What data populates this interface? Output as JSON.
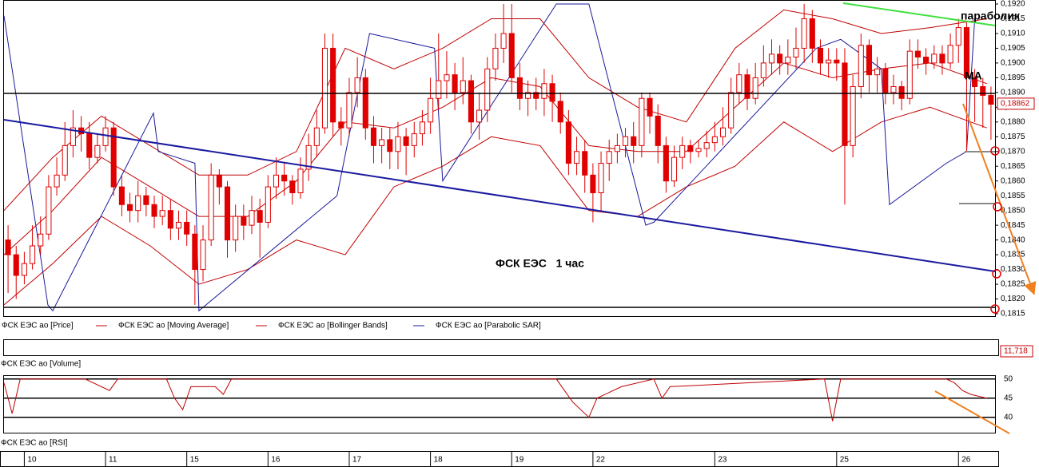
{
  "chart_data": [
    {
      "type": "candlestick",
      "annotations": [
        "параболик",
        "МА",
        "ФСК ЕЭС   1 час"
      ],
      "last_price": {
        "value": 0.18862,
        "label": "0,18862"
      },
      "xlim": [
        0,
        122
      ],
      "xticks": [
        {
          "value": 2.5,
          "label": "10"
        },
        {
          "value": 12.5,
          "label": "11"
        },
        {
          "value": 22.5,
          "label": "15"
        },
        {
          "value": 32.5,
          "label": "16"
        },
        {
          "value": 42.5,
          "label": "17"
        },
        {
          "value": 52.5,
          "label": "18"
        },
        {
          "value": 62.5,
          "label": "19"
        },
        {
          "value": 72.5,
          "label": "22"
        },
        {
          "value": 87.5,
          "label": "23"
        },
        {
          "value": 102.5,
          "label": "25"
        },
        {
          "value": 117.5,
          "label": "26"
        }
      ],
      "ylim": [
        0.1815,
        0.192
      ],
      "yticks": [
        {
          "value": 0.1815,
          "label": "0,1815"
        },
        {
          "value": 0.182,
          "label": "0,1820"
        },
        {
          "value": 0.1825,
          "label": "0,1825"
        },
        {
          "value": 0.183,
          "label": "0,1830"
        },
        {
          "value": 0.1835,
          "label": "0,1835"
        },
        {
          "value": 0.184,
          "label": "0,1840"
        },
        {
          "value": 0.1845,
          "label": "0,1845"
        },
        {
          "value": 0.185,
          "label": "0,1850"
        },
        {
          "value": 0.1855,
          "label": "0,1855"
        },
        {
          "value": 0.186,
          "label": "0,1860"
        },
        {
          "value": 0.1865,
          "label": "0,1865"
        },
        {
          "value": 0.187,
          "label": "0,1870"
        },
        {
          "value": 0.1875,
          "label": "0,1875"
        },
        {
          "value": 0.188,
          "label": "0,1880"
        },
        {
          "value": 0.1885,
          "label": "0,1885"
        },
        {
          "value": 0.189,
          "label": "0,1890"
        },
        {
          "value": 0.1895,
          "label": "0,1895"
        },
        {
          "value": 0.19,
          "label": "0,1900"
        },
        {
          "value": 0.1905,
          "label": "0,1905"
        },
        {
          "value": 0.191,
          "label": "0,1910"
        },
        {
          "value": 0.1915,
          "label": "0,1915"
        },
        {
          "value": 0.192,
          "label": "0,1920"
        }
      ],
      "price": {
        "name": "ФСК ЕЭС ао [Price]",
        "color": "#e00000",
        "open": [
          0.184,
          0.1835,
          0.1828,
          0.1832,
          0.1838,
          0.1842,
          0.1858,
          0.1862,
          0.1872,
          0.1878,
          0.1876,
          0.1868,
          0.1872,
          0.1878,
          0.1858,
          0.1852,
          0.185,
          0.1855,
          0.1852,
          0.1848,
          0.185,
          0.1844,
          0.1846,
          0.1842,
          0.183,
          0.184,
          0.1862,
          0.1858,
          0.184,
          0.1848,
          0.1845,
          0.185,
          0.1846,
          0.1858,
          0.1862,
          0.186,
          0.1856,
          0.1864,
          0.1872,
          0.1878,
          0.1905,
          0.188,
          0.1878,
          0.189,
          0.1895,
          0.1878,
          0.1872,
          0.1874,
          0.187,
          0.1875,
          0.1872,
          0.1876,
          0.188,
          0.1888,
          0.1894,
          0.1896,
          0.189,
          0.1894,
          0.188,
          0.1884,
          0.1898,
          0.1905,
          0.191,
          0.1895,
          0.1888,
          0.189,
          0.1888,
          0.1893,
          0.1887,
          0.188,
          0.1866,
          0.187,
          0.1862,
          0.1856,
          0.1866,
          0.187,
          0.1872,
          0.1875,
          0.1872,
          0.1888,
          0.1882,
          0.1872,
          0.186,
          0.1868,
          0.1872,
          0.187,
          0.1871,
          0.1873,
          0.1875,
          0.1878,
          0.189,
          0.1896,
          0.1888,
          0.1895,
          0.19,
          0.1903,
          0.19,
          0.1902,
          0.1905,
          0.1915,
          0.1905,
          0.19,
          0.1901,
          0.19,
          0.1872,
          0.1892,
          0.1906,
          0.1896,
          0.1898,
          0.189,
          0.1892,
          0.1888,
          0.1904,
          0.1902,
          0.19,
          0.1903,
          0.19,
          0.1906,
          0.1912,
          0.1895,
          0.1892,
          0.1889
        ],
        "high": [
          0.1845,
          0.1838,
          0.1836,
          0.1845,
          0.1848,
          0.1862,
          0.1868,
          0.188,
          0.1884,
          0.1882,
          0.188,
          0.1876,
          0.1882,
          0.188,
          0.1862,
          0.1856,
          0.186,
          0.1858,
          0.1855,
          0.1855,
          0.1854,
          0.185,
          0.185,
          0.1845,
          0.1845,
          0.1866,
          0.1864,
          0.186,
          0.1852,
          0.1852,
          0.1855,
          0.1854,
          0.1862,
          0.1868,
          0.1866,
          0.1862,
          0.1868,
          0.1876,
          0.1884,
          0.191,
          0.191,
          0.1885,
          0.1895,
          0.1902,
          0.1898,
          0.1882,
          0.1878,
          0.1878,
          0.188,
          0.1878,
          0.188,
          0.1884,
          0.1895,
          0.191,
          0.1904,
          0.19,
          0.1902,
          0.1896,
          0.189,
          0.1902,
          0.191,
          0.192,
          0.192,
          0.19,
          0.1894,
          0.1895,
          0.1898,
          0.1896,
          0.189,
          0.1884,
          0.1875,
          0.1874,
          0.1866,
          0.187,
          0.1874,
          0.1876,
          0.1878,
          0.188,
          0.189,
          0.189,
          0.1886,
          0.1875,
          0.1872,
          0.1875,
          0.1874,
          0.1874,
          0.1877,
          0.188,
          0.1885,
          0.1895,
          0.19,
          0.1898,
          0.19,
          0.1906,
          0.1908,
          0.1906,
          0.1908,
          0.1912,
          0.192,
          0.1918,
          0.1908,
          0.1905,
          0.1905,
          0.1905,
          0.1896,
          0.191,
          0.1908,
          0.1902,
          0.19,
          0.1896,
          0.1894,
          0.1908,
          0.1908,
          0.1905,
          0.1906,
          0.1906,
          0.191,
          0.1915,
          0.1914,
          0.1898,
          0.1895,
          0.1892
        ],
        "low": [
          0.1822,
          0.182,
          0.1825,
          0.183,
          0.1835,
          0.184,
          0.1855,
          0.186,
          0.1868,
          0.187,
          0.1864,
          0.1866,
          0.187,
          0.1855,
          0.1848,
          0.1846,
          0.1846,
          0.1848,
          0.1844,
          0.1845,
          0.184,
          0.184,
          0.1838,
          0.1818,
          0.1826,
          0.1838,
          0.1852,
          0.1834,
          0.1836,
          0.184,
          0.1842,
          0.1834,
          0.1844,
          0.1854,
          0.1855,
          0.1852,
          0.1854,
          0.186,
          0.1868,
          0.1876,
          0.1875,
          0.1872,
          0.1875,
          0.1885,
          0.1874,
          0.1866,
          0.1866,
          0.1864,
          0.1864,
          0.1862,
          0.1868,
          0.1872,
          0.1876,
          0.1884,
          0.1888,
          0.1884,
          0.1886,
          0.1876,
          0.1874,
          0.188,
          0.1894,
          0.19,
          0.189,
          0.1884,
          0.1882,
          0.1884,
          0.1882,
          0.188,
          0.1876,
          0.1862,
          0.1862,
          0.1856,
          0.1846,
          0.185,
          0.186,
          0.1866,
          0.1868,
          0.1866,
          0.1868,
          0.1876,
          0.1866,
          0.1856,
          0.1858,
          0.1864,
          0.1866,
          0.1868,
          0.1868,
          0.187,
          0.1872,
          0.1876,
          0.1886,
          0.1884,
          0.1886,
          0.1892,
          0.1896,
          0.1896,
          0.1896,
          0.1898,
          0.19,
          0.19,
          0.1896,
          0.1895,
          0.1894,
          0.1852,
          0.1868,
          0.1888,
          0.189,
          0.189,
          0.1886,
          0.1886,
          0.1884,
          0.1886,
          0.1898,
          0.1896,
          0.1898,
          0.1896,
          0.1898,
          0.19,
          0.187,
          0.188,
          0.1878,
          0.1874
        ],
        "close": [
          0.1835,
          0.1828,
          0.1832,
          0.1838,
          0.1842,
          0.1858,
          0.1862,
          0.1872,
          0.1878,
          0.1876,
          0.1868,
          0.1872,
          0.1878,
          0.1858,
          0.1852,
          0.185,
          0.1855,
          0.1852,
          0.1848,
          0.185,
          0.1844,
          0.1846,
          0.1842,
          0.183,
          0.184,
          0.1862,
          0.1858,
          0.184,
          0.1848,
          0.1845,
          0.185,
          0.1846,
          0.1858,
          0.1862,
          0.186,
          0.1856,
          0.1864,
          0.1872,
          0.1878,
          0.1905,
          0.188,
          0.1878,
          0.189,
          0.1895,
          0.1878,
          0.1872,
          0.1874,
          0.187,
          0.1875,
          0.1872,
          0.1876,
          0.188,
          0.1888,
          0.1894,
          0.1896,
          0.189,
          0.1894,
          0.188,
          0.1884,
          0.1898,
          0.1905,
          0.191,
          0.1895,
          0.1888,
          0.189,
          0.1888,
          0.1893,
          0.1887,
          0.188,
          0.1866,
          0.187,
          0.1862,
          0.1856,
          0.1866,
          0.187,
          0.1872,
          0.1875,
          0.1872,
          0.1888,
          0.1882,
          0.1872,
          0.186,
          0.1868,
          0.1872,
          0.187,
          0.1871,
          0.1873,
          0.1875,
          0.1878,
          0.189,
          0.1896,
          0.1888,
          0.1895,
          0.19,
          0.1903,
          0.19,
          0.1902,
          0.1905,
          0.1915,
          0.1905,
          0.19,
          0.1901,
          0.19,
          0.1872,
          0.1892,
          0.1906,
          0.1896,
          0.1898,
          0.189,
          0.1892,
          0.1888,
          0.1904,
          0.1902,
          0.19,
          0.1903,
          0.19,
          0.1906,
          0.1912,
          0.1895,
          0.1892,
          0.1889,
          0.1886
        ]
      },
      "series": [
        {
          "name": "ФСК ЕЭС ао [Moving Average]",
          "color": "#c00000",
          "x": [
            0,
            6,
            12,
            18,
            24,
            30,
            36,
            42,
            48,
            54,
            60,
            66,
            72,
            78,
            84,
            90,
            96,
            102,
            108,
            114,
            121
          ],
          "values": [
            0.1835,
            0.185,
            0.1868,
            0.1858,
            0.1848,
            0.1848,
            0.186,
            0.188,
            0.1878,
            0.1885,
            0.1895,
            0.1892,
            0.1872,
            0.187,
            0.187,
            0.1885,
            0.19,
            0.1895,
            0.1898,
            0.19,
            0.1893
          ]
        },
        {
          "name": "ФСК ЕЭС ао [Bollinger Bands]",
          "color": "#c00000",
          "x": [
            0,
            6,
            12,
            18,
            24,
            30,
            36,
            42,
            48,
            54,
            60,
            66,
            72,
            78,
            84,
            90,
            96,
            102,
            108,
            114,
            121
          ],
          "upper": [
            0.185,
            0.1868,
            0.1882,
            0.1872,
            0.1862,
            0.1862,
            0.187,
            0.1905,
            0.1898,
            0.1905,
            0.1915,
            0.1915,
            0.1895,
            0.1885,
            0.188,
            0.1905,
            0.1918,
            0.1915,
            0.191,
            0.1912,
            0.1915
          ],
          "lower": [
            0.1818,
            0.1832,
            0.1848,
            0.1838,
            0.1825,
            0.183,
            0.184,
            0.1835,
            0.1858,
            0.1865,
            0.1875,
            0.1872,
            0.185,
            0.1848,
            0.1858,
            0.1865,
            0.188,
            0.187,
            0.188,
            0.1885,
            0.1878
          ]
        },
        {
          "name": "ФСК ЕЭС ао [Parabolic SAR]",
          "color": "#1a1a9a",
          "x": [
            0,
            5.4,
            6,
            18.4,
            19,
            23.5,
            24,
            41,
            45,
            53,
            54,
            68,
            72,
            79,
            80,
            100,
            103,
            108,
            109,
            116,
            118.5,
            119.5
          ],
          "values": [
            0.1916,
            0.1818,
            0.1816,
            0.1883,
            0.187,
            0.1866,
            0.1816,
            0.1855,
            0.191,
            0.1905,
            0.186,
            0.192,
            0.192,
            0.1845,
            0.1846,
            0.1905,
            0.1908,
            0.1898,
            0.1852,
            0.1866,
            0.187,
            0.1915
          ]
        }
      ]
    },
    {
      "type": "volume",
      "title": "ФСК ЕЭС ао [Volume]",
      "last_value": {
        "value": 11.718,
        "label": "11,718"
      }
    },
    {
      "type": "line",
      "title": "ФСК ЕЭС ао [RSI]",
      "color": "#c00000",
      "xlim": [
        0,
        122
      ],
      "ylim": [
        36,
        51
      ],
      "yticks": [
        40,
        45,
        50
      ],
      "x": [
        0,
        1,
        2,
        10,
        13,
        14,
        20,
        21,
        22,
        23,
        26,
        27,
        28,
        68,
        70,
        71,
        72,
        73,
        76,
        80,
        81,
        82,
        101,
        102,
        103,
        116,
        117,
        118,
        119,
        121
      ],
      "values": [
        49,
        41,
        50,
        50,
        47,
        50,
        50,
        45,
        42,
        48,
        48,
        46,
        50,
        50,
        44,
        42,
        40,
        45,
        48,
        50,
        45,
        48,
        50,
        39,
        50,
        50,
        49,
        47,
        46,
        45
      ]
    }
  ]
}
